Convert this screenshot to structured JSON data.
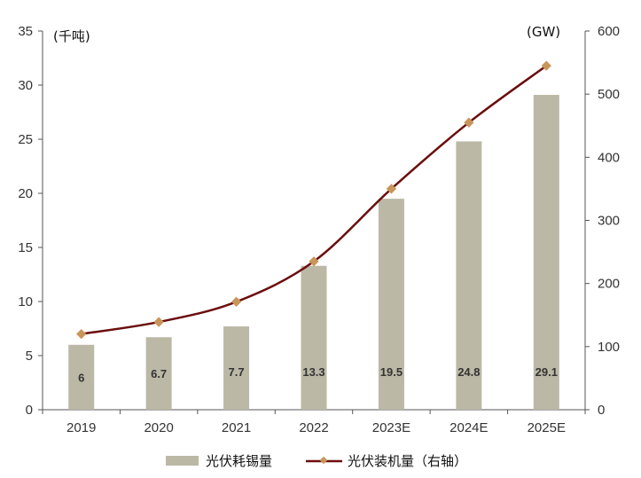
{
  "chart_data": {
    "type": "bar+line",
    "categories": [
      "2019",
      "2020",
      "2021",
      "2022",
      "2023E",
      "2024E",
      "2025E"
    ],
    "series": [
      {
        "name": "光伏耗锡量",
        "type": "bar",
        "axis": "left",
        "values": [
          6,
          6.7,
          7.7,
          13.3,
          19.5,
          24.8,
          29.1
        ],
        "data_labels": [
          "6",
          "6.7",
          "7.7",
          "13.3",
          "19.5",
          "24.8",
          "29.1"
        ],
        "color": "#bbb8a6"
      },
      {
        "name": "光伏装机量（右轴",
        "legend_suffix": "）",
        "type": "line",
        "axis": "right",
        "values": [
          120,
          139,
          171,
          235,
          350,
          455,
          545
        ],
        "color": "#6b0d0d",
        "marker_color": "#c8965a"
      }
    ],
    "left_axis": {
      "unit_label": "(千吨)",
      "min": 0,
      "max": 35,
      "ticks": [
        "0",
        "5",
        "10",
        "15",
        "20",
        "25",
        "30",
        "35"
      ]
    },
    "right_axis": {
      "unit_label": "(GW)",
      "min": 0,
      "max": 600,
      "ticks": [
        "0",
        "100",
        "200",
        "300",
        "400",
        "500",
        "600"
      ]
    },
    "legend": {
      "position": "bottom"
    }
  }
}
